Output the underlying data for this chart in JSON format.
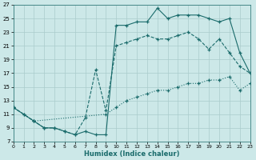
{
  "bg_color": "#cce8e8",
  "grid_color": "#aacccc",
  "line_color": "#1a6b6b",
  "xlabel": "Humidex (Indice chaleur)",
  "xlim": [
    0,
    23
  ],
  "ylim": [
    7,
    27
  ],
  "xticks": [
    0,
    1,
    2,
    3,
    4,
    5,
    6,
    7,
    8,
    9,
    10,
    11,
    12,
    13,
    14,
    15,
    16,
    17,
    18,
    19,
    20,
    21,
    22,
    23
  ],
  "yticks": [
    7,
    9,
    11,
    13,
    15,
    17,
    19,
    21,
    23,
    25,
    27
  ],
  "line1": {
    "x": [
      0,
      1,
      2,
      9,
      10,
      11,
      12,
      13,
      14,
      15,
      16,
      17,
      18,
      19,
      20,
      21,
      22,
      23
    ],
    "y": [
      12,
      11,
      10,
      11,
      12,
      13,
      13.5,
      14,
      14.5,
      14.5,
      15,
      15.5,
      15.5,
      16,
      16,
      16.5,
      14.5,
      15.5
    ]
  },
  "line2": {
    "x": [
      0,
      1,
      2,
      3,
      4,
      5,
      6,
      7,
      8,
      9,
      10,
      11,
      12,
      13,
      14,
      15,
      16,
      17,
      18,
      19,
      20,
      21,
      22,
      23
    ],
    "y": [
      12,
      11,
      10,
      9,
      9,
      8.5,
      8,
      10.5,
      17.5,
      11.5,
      21,
      21.5,
      22,
      22.5,
      22,
      22,
      22.5,
      23,
      22,
      20.5,
      22,
      20,
      18,
      17
    ]
  },
  "line3": {
    "x": [
      0,
      2,
      3,
      4,
      5,
      6,
      7,
      8,
      9,
      10,
      11,
      12,
      13,
      14,
      15,
      16,
      17,
      18,
      19,
      20,
      21,
      22,
      23
    ],
    "y": [
      12,
      10,
      9,
      9,
      8.5,
      8,
      8.5,
      8,
      8,
      24,
      24,
      24.5,
      24.5,
      26.5,
      25,
      25.5,
      25.5,
      25.5,
      25,
      24.5,
      25,
      20,
      17
    ]
  }
}
